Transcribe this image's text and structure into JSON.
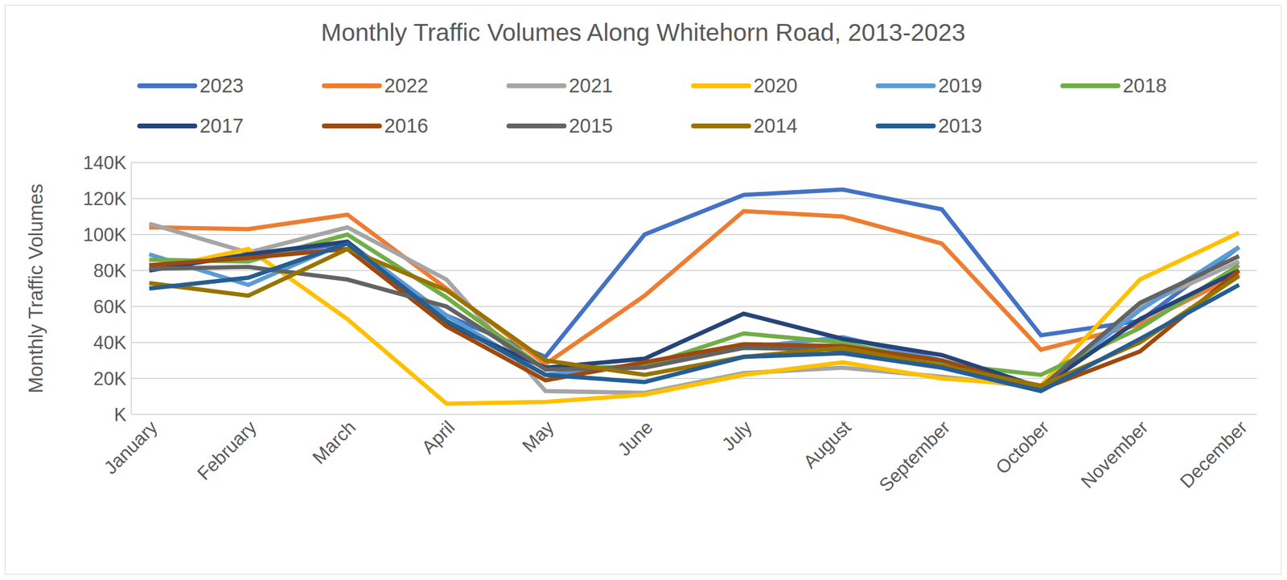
{
  "chart_data": {
    "type": "line",
    "title": "Monthly Traffic Volumes Along Whitehorn Road, 2013-2023",
    "y_label": "Monthly Traffic Volumes",
    "categories": [
      "January",
      "February",
      "March",
      "April",
      "May",
      "June",
      "July",
      "August",
      "September",
      "October",
      "November",
      "December"
    ],
    "ylim": [
      0,
      140000
    ],
    "yticks": [
      {
        "value": 0,
        "label": "K"
      },
      {
        "value": 20000,
        "label": "20K"
      },
      {
        "value": 40000,
        "label": "40K"
      },
      {
        "value": 60000,
        "label": "60K"
      },
      {
        "value": 80000,
        "label": "80K"
      },
      {
        "value": 100000,
        "label": "100K"
      },
      {
        "value": 120000,
        "label": "120K"
      },
      {
        "value": 140000,
        "label": "140K"
      }
    ],
    "grid": true,
    "legend": "top",
    "series": [
      {
        "name": "2023",
        "color": "#4472C4",
        "values": [
          82000,
          88000,
          95000,
          55000,
          32000,
          100000,
          122000,
          125000,
          114000,
          44000,
          52000,
          93000
        ]
      },
      {
        "name": "2022",
        "color": "#ED7D31",
        "values": [
          104000,
          103000,
          111000,
          70000,
          28000,
          66000,
          113000,
          110000,
          95000,
          36000,
          50000,
          78000
        ]
      },
      {
        "name": "2021",
        "color": "#A5A5A5",
        "values": [
          106000,
          90000,
          104000,
          75000,
          13000,
          12000,
          23000,
          26000,
          21000,
          15000,
          60000,
          85000
        ]
      },
      {
        "name": "2020",
        "color": "#FFC000",
        "values": [
          80000,
          92000,
          53000,
          6000,
          7000,
          11000,
          22000,
          29000,
          20000,
          16000,
          75000,
          101000
        ]
      },
      {
        "name": "2019",
        "color": "#5B9BD5",
        "values": [
          89000,
          72000,
          96000,
          55000,
          22000,
          28000,
          37000,
          43000,
          30000,
          15000,
          58000,
          93000
        ]
      },
      {
        "name": "2018",
        "color": "#70AD47",
        "values": [
          86000,
          85000,
          100000,
          65000,
          25000,
          27000,
          45000,
          40000,
          28000,
          22000,
          48000,
          83000
        ]
      },
      {
        "name": "2017",
        "color": "#264478",
        "values": [
          80000,
          89000,
          96000,
          50000,
          26000,
          31000,
          56000,
          42000,
          33000,
          15000,
          53000,
          80000
        ]
      },
      {
        "name": "2016",
        "color": "#9E480E",
        "values": [
          83000,
          87000,
          92000,
          49000,
          19000,
          29000,
          39000,
          38000,
          30000,
          14000,
          35000,
          80000
        ]
      },
      {
        "name": "2015",
        "color": "#636363",
        "values": [
          81000,
          82000,
          75000,
          60000,
          25000,
          26000,
          37000,
          36000,
          27000,
          15000,
          62000,
          88000
        ]
      },
      {
        "name": "2014",
        "color": "#997300",
        "values": [
          73000,
          66000,
          92000,
          69000,
          30000,
          22000,
          32000,
          37000,
          27000,
          16000,
          40000,
          77000
        ]
      },
      {
        "name": "2013",
        "color": "#255E91",
        "values": [
          70000,
          76000,
          95000,
          52000,
          22000,
          18000,
          32000,
          34000,
          26000,
          13000,
          42000,
          72000
        ]
      }
    ]
  }
}
